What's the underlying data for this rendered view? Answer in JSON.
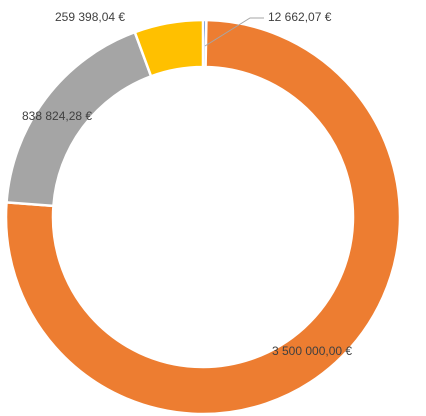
{
  "chart_data": {
    "type": "donut",
    "values": [
      12662.07,
      3500000.0,
      838824.28,
      259398.04
    ],
    "value_labels": [
      "12 662,07 €",
      "3 500 000,00 €",
      "838 824,28 €",
      "259 398,04 €"
    ],
    "colors": [
      "#4472C4",
      "#ED7D31",
      "#A5A5A5",
      "#FFC000"
    ]
  }
}
